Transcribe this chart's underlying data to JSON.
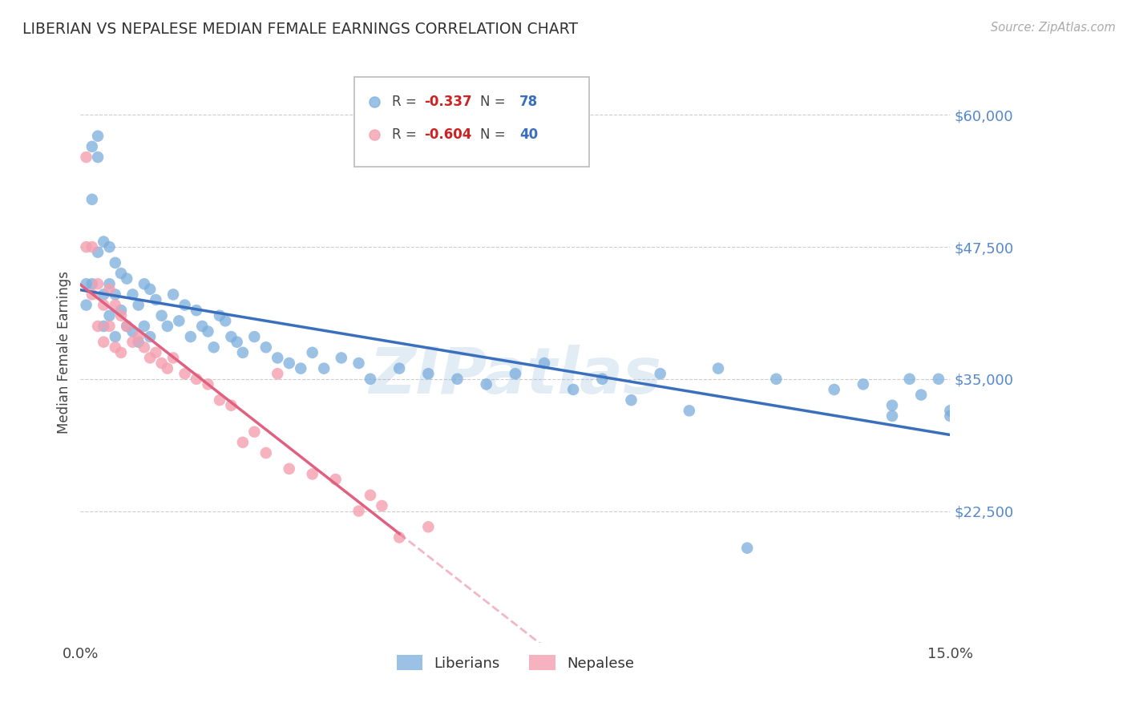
{
  "title": "LIBERIAN VS NEPALESE MEDIAN FEMALE EARNINGS CORRELATION CHART",
  "source": "Source: ZipAtlas.com",
  "ylabel": "Median Female Earnings",
  "ylim": [
    10000,
    65000
  ],
  "xlim": [
    0.0,
    0.15
  ],
  "background_color": "#ffffff",
  "grid_color": "#cccccc",
  "blue_color": "#7aaddc",
  "pink_color": "#f4a0b0",
  "blue_line_color": "#3a6fbe",
  "pink_line_color": "#e06080",
  "watermark": "ZIPatlas",
  "legend_blue_r": "-0.337",
  "legend_blue_n": "78",
  "legend_pink_r": "-0.604",
  "legend_pink_n": "40",
  "ytick_vals": [
    22500,
    35000,
    47500,
    60000
  ],
  "ytick_labels": [
    "$22,500",
    "$35,000",
    "$47,500",
    "$60,000"
  ],
  "liberian_x": [
    0.001,
    0.001,
    0.002,
    0.002,
    0.002,
    0.003,
    0.003,
    0.003,
    0.004,
    0.004,
    0.004,
    0.005,
    0.005,
    0.005,
    0.006,
    0.006,
    0.006,
    0.007,
    0.007,
    0.008,
    0.008,
    0.009,
    0.009,
    0.01,
    0.01,
    0.011,
    0.011,
    0.012,
    0.012,
    0.013,
    0.014,
    0.015,
    0.016,
    0.017,
    0.018,
    0.019,
    0.02,
    0.021,
    0.022,
    0.023,
    0.024,
    0.025,
    0.026,
    0.027,
    0.028,
    0.03,
    0.032,
    0.034,
    0.036,
    0.038,
    0.04,
    0.042,
    0.045,
    0.048,
    0.05,
    0.055,
    0.06,
    0.065,
    0.07,
    0.075,
    0.08,
    0.09,
    0.1,
    0.11,
    0.12,
    0.13,
    0.135,
    0.14,
    0.143,
    0.145,
    0.148,
    0.15,
    0.15,
    0.14,
    0.085,
    0.095,
    0.105,
    0.115
  ],
  "liberian_y": [
    42000,
    44000,
    57000,
    52000,
    44000,
    58000,
    56000,
    47000,
    48000,
    43000,
    40000,
    47500,
    44000,
    41000,
    46000,
    43000,
    39000,
    45000,
    41500,
    44500,
    40000,
    43000,
    39500,
    42000,
    38500,
    44000,
    40000,
    43500,
    39000,
    42500,
    41000,
    40000,
    43000,
    40500,
    42000,
    39000,
    41500,
    40000,
    39500,
    38000,
    41000,
    40500,
    39000,
    38500,
    37500,
    39000,
    38000,
    37000,
    36500,
    36000,
    37500,
    36000,
    37000,
    36500,
    35000,
    36000,
    35500,
    35000,
    34500,
    35500,
    36500,
    35000,
    35500,
    36000,
    35000,
    34000,
    34500,
    31500,
    35000,
    33500,
    35000,
    32000,
    31500,
    32500,
    34000,
    33000,
    32000,
    19000
  ],
  "nepalese_x": [
    0.001,
    0.001,
    0.002,
    0.002,
    0.003,
    0.003,
    0.004,
    0.004,
    0.005,
    0.005,
    0.006,
    0.006,
    0.007,
    0.007,
    0.008,
    0.009,
    0.01,
    0.011,
    0.012,
    0.013,
    0.014,
    0.015,
    0.016,
    0.018,
    0.02,
    0.022,
    0.024,
    0.026,
    0.028,
    0.03,
    0.032,
    0.034,
    0.036,
    0.04,
    0.044,
    0.048,
    0.05,
    0.052,
    0.055,
    0.06
  ],
  "nepalese_y": [
    56000,
    47500,
    47500,
    43000,
    44000,
    40000,
    42000,
    38500,
    43500,
    40000,
    42000,
    38000,
    41000,
    37500,
    40000,
    38500,
    39000,
    38000,
    37000,
    37500,
    36500,
    36000,
    37000,
    35500,
    35000,
    34500,
    33000,
    32500,
    29000,
    30000,
    28000,
    35500,
    26500,
    26000,
    25500,
    22500,
    24000,
    23000,
    20000,
    21000
  ]
}
